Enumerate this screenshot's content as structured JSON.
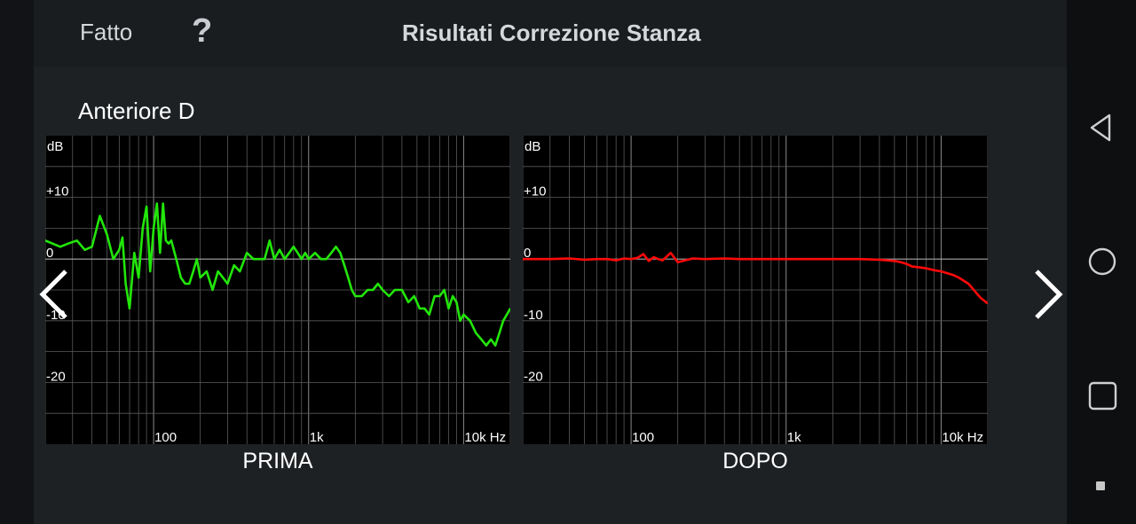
{
  "header": {
    "done_label": "Fatto",
    "help_label": "?",
    "title": "Risultati Correzione Stanza"
  },
  "channel_name": "Anteriore D",
  "charts": [
    {
      "caption": "PRIMA",
      "line_color": "#22e60a",
      "unit_label": "dB",
      "y_tick_labels": [
        "+10",
        "0",
        "-10",
        "-20"
      ],
      "x_tick_labels": [
        "100",
        "1k",
        "10k Hz"
      ]
    },
    {
      "caption": "DOPO",
      "line_color": "#ff0a0a",
      "unit_label": "dB",
      "y_tick_labels": [
        "+10",
        "0",
        "-10",
        "-20"
      ],
      "x_tick_labels": [
        "100",
        "1k",
        "10k Hz"
      ]
    }
  ],
  "chart_data": [
    {
      "type": "line",
      "title": "PRIMA",
      "xlabel": "Hz",
      "ylabel": "dB",
      "x_scale": "log",
      "xlim": [
        20,
        20000
      ],
      "ylim": [
        -30,
        20
      ],
      "series": [
        {
          "x": [
            20,
            25,
            28,
            32,
            36,
            40,
            45,
            50,
            55,
            60,
            63,
            66,
            70,
            75,
            80,
            85,
            90,
            95,
            100,
            105,
            110,
            115,
            120,
            125,
            130,
            140,
            150,
            160,
            170,
            180,
            190,
            200,
            220,
            240,
            260,
            280,
            300,
            330,
            360,
            400,
            440,
            480,
            520,
            560,
            600,
            650,
            700,
            750,
            800,
            850,
            900,
            950,
            1000,
            1100,
            1200,
            1300,
            1400,
            1500,
            1600,
            1700,
            1800,
            1900,
            2000,
            2200,
            2400,
            2600,
            2800,
            3000,
            3300,
            3600,
            4000,
            4400,
            4800,
            5200,
            5600,
            6000,
            6500,
            7000,
            7500,
            8000,
            8500,
            9000,
            9500,
            10000,
            11000,
            12000,
            13000,
            14000,
            15000,
            16000,
            17000,
            18000,
            19000,
            20000
          ],
          "y": [
            3,
            2,
            2.5,
            3,
            1.5,
            2,
            7,
            4,
            0,
            1.5,
            3.5,
            -4,
            -8,
            1,
            -3,
            5,
            8.5,
            -2,
            5,
            9,
            1,
            9,
            3,
            2.5,
            3,
            0,
            -3,
            -4,
            -4,
            -2,
            0,
            -3,
            -2,
            -5,
            -2,
            -3,
            -4,
            -1,
            -2,
            1,
            0,
            0,
            0,
            3,
            0,
            1.5,
            0,
            1,
            2,
            1,
            0,
            1,
            0,
            1,
            0,
            0,
            1,
            2,
            1,
            -1,
            -3,
            -5,
            -6,
            -6,
            -5,
            -5,
            -4,
            -5,
            -6,
            -5,
            -5,
            -7,
            -6,
            -8,
            -8,
            -9,
            -6,
            -6,
            -5,
            -8,
            -6,
            -7,
            -10,
            -9,
            -10,
            -12,
            -13,
            -14,
            -13,
            -14,
            -12,
            -10,
            -9,
            -8
          ]
        }
      ]
    },
    {
      "type": "line",
      "title": "DOPO",
      "xlabel": "Hz",
      "ylabel": "dB",
      "x_scale": "log",
      "xlim": [
        20,
        20000
      ],
      "ylim": [
        -30,
        20
      ],
      "series": [
        {
          "x": [
            20,
            30,
            40,
            50,
            60,
            70,
            80,
            90,
            100,
            110,
            120,
            130,
            140,
            150,
            160,
            180,
            200,
            250,
            300,
            400,
            500,
            700,
            1000,
            1500,
            2000,
            3000,
            4000,
            5000,
            5500,
            6000,
            6500,
            7000,
            8000,
            9000,
            10000,
            11000,
            12000,
            13000,
            14000,
            15000,
            16000,
            17000,
            18000,
            20000
          ],
          "y": [
            0,
            0,
            0.1,
            -0.1,
            0,
            0,
            -0.2,
            0.1,
            0,
            0.2,
            0.8,
            -0.3,
            0.3,
            0,
            -0.2,
            1,
            -0.5,
            0.1,
            0,
            0.1,
            0,
            0,
            0,
            0,
            0,
            0,
            -0.1,
            -0.3,
            -0.5,
            -0.8,
            -1.2,
            -1.3,
            -1.5,
            -1.8,
            -2,
            -2.3,
            -2.6,
            -3,
            -3.5,
            -4,
            -4.8,
            -5.6,
            -6.3,
            -7.2
          ]
        }
      ]
    }
  ],
  "nav": {
    "prev_icon": "chevron-left-icon",
    "next_icon": "chevron-right-icon",
    "back_icon": "triangle-back-icon",
    "home_icon": "circle-home-icon",
    "recent_icon": "square-recent-icon"
  }
}
